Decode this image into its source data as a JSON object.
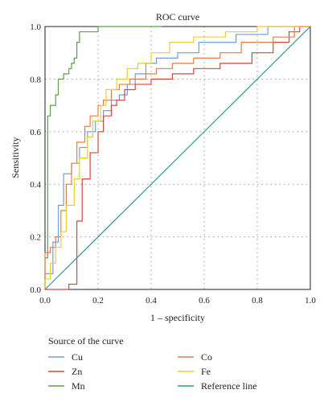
{
  "chart_data": {
    "type": "line",
    "title": "ROC curve",
    "xlabel": "1 – specificity",
    "ylabel": "Sensitivity",
    "xlim": [
      0,
      1
    ],
    "ylim": [
      0,
      1
    ],
    "xticks": [
      "0.0",
      "0.2",
      "0.4",
      "0.6",
      "0.8",
      "1.0"
    ],
    "yticks": [
      "0.0",
      "0.2",
      "0.4",
      "0.6",
      "0.8",
      "1.0"
    ],
    "grid": true,
    "legend": {
      "title": "Source of the curve",
      "placement": "bottom"
    },
    "series": [
      {
        "name": "Cu",
        "color": "#6f9fd8",
        "points": [
          [
            0,
            0
          ],
          [
            0,
            0.06
          ],
          [
            0.03,
            0.06
          ],
          [
            0.03,
            0.18
          ],
          [
            0.05,
            0.18
          ],
          [
            0.05,
            0.32
          ],
          [
            0.07,
            0.32
          ],
          [
            0.07,
            0.44
          ],
          [
            0.1,
            0.44
          ],
          [
            0.1,
            0.48
          ],
          [
            0.13,
            0.48
          ],
          [
            0.13,
            0.54
          ],
          [
            0.16,
            0.54
          ],
          [
            0.16,
            0.6
          ],
          [
            0.19,
            0.6
          ],
          [
            0.19,
            0.64
          ],
          [
            0.22,
            0.64
          ],
          [
            0.22,
            0.68
          ],
          [
            0.25,
            0.68
          ],
          [
            0.25,
            0.72
          ],
          [
            0.28,
            0.72
          ],
          [
            0.28,
            0.74
          ],
          [
            0.31,
            0.74
          ],
          [
            0.31,
            0.78
          ],
          [
            0.34,
            0.78
          ],
          [
            0.34,
            0.82
          ],
          [
            0.38,
            0.82
          ],
          [
            0.38,
            0.86
          ],
          [
            0.42,
            0.86
          ],
          [
            0.42,
            0.88
          ],
          [
            0.5,
            0.88
          ],
          [
            0.5,
            0.9
          ],
          [
            0.58,
            0.9
          ],
          [
            0.58,
            0.94
          ],
          [
            0.72,
            0.94
          ],
          [
            0.72,
            0.97
          ],
          [
            0.84,
            0.97
          ],
          [
            0.84,
            1.0
          ],
          [
            1.0,
            1.0
          ]
        ]
      },
      {
        "name": "Zn",
        "color": "#d9453d",
        "points": [
          [
            0,
            0
          ],
          [
            0.09,
            0
          ],
          [
            0.09,
            0.02
          ],
          [
            0.12,
            0.02
          ],
          [
            0.12,
            0.26
          ],
          [
            0.14,
            0.26
          ],
          [
            0.14,
            0.42
          ],
          [
            0.17,
            0.42
          ],
          [
            0.17,
            0.52
          ],
          [
            0.2,
            0.52
          ],
          [
            0.2,
            0.6
          ],
          [
            0.22,
            0.6
          ],
          [
            0.22,
            0.66
          ],
          [
            0.25,
            0.66
          ],
          [
            0.25,
            0.7
          ],
          [
            0.27,
            0.7
          ],
          [
            0.27,
            0.72
          ],
          [
            0.3,
            0.72
          ],
          [
            0.3,
            0.76
          ],
          [
            0.34,
            0.76
          ],
          [
            0.34,
            0.78
          ],
          [
            0.4,
            0.78
          ],
          [
            0.4,
            0.8
          ],
          [
            0.48,
            0.8
          ],
          [
            0.48,
            0.82
          ],
          [
            0.56,
            0.82
          ],
          [
            0.56,
            0.84
          ],
          [
            0.66,
            0.84
          ],
          [
            0.66,
            0.86
          ],
          [
            0.78,
            0.86
          ],
          [
            0.78,
            0.9
          ],
          [
            0.86,
            0.9
          ],
          [
            0.86,
            0.94
          ],
          [
            0.92,
            0.94
          ],
          [
            0.92,
            0.98
          ],
          [
            0.96,
            0.98
          ],
          [
            0.96,
            1.0
          ],
          [
            1.0,
            1.0
          ]
        ]
      },
      {
        "name": "Mn",
        "color": "#5d9e4a",
        "points": [
          [
            0,
            0
          ],
          [
            0,
            0.12
          ],
          [
            0.01,
            0.12
          ],
          [
            0.01,
            0.66
          ],
          [
            0.02,
            0.66
          ],
          [
            0.02,
            0.7
          ],
          [
            0.04,
            0.7
          ],
          [
            0.04,
            0.74
          ],
          [
            0.05,
            0.74
          ],
          [
            0.05,
            0.8
          ],
          [
            0.07,
            0.8
          ],
          [
            0.07,
            0.82
          ],
          [
            0.09,
            0.82
          ],
          [
            0.09,
            0.84
          ],
          [
            0.1,
            0.84
          ],
          [
            0.1,
            0.86
          ],
          [
            0.11,
            0.86
          ],
          [
            0.11,
            0.88
          ],
          [
            0.12,
            0.88
          ],
          [
            0.12,
            0.94
          ],
          [
            0.13,
            0.94
          ],
          [
            0.13,
            0.98
          ],
          [
            0.2,
            0.98
          ],
          [
            0.2,
            1.0
          ],
          [
            0.44,
            1.0
          ]
        ]
      },
      {
        "name": "Co",
        "color": "#e37d4c",
        "points": [
          [
            0,
            0
          ],
          [
            0,
            0.14
          ],
          [
            0.02,
            0.14
          ],
          [
            0.02,
            0.16
          ],
          [
            0.04,
            0.16
          ],
          [
            0.04,
            0.2
          ],
          [
            0.06,
            0.2
          ],
          [
            0.06,
            0.3
          ],
          [
            0.08,
            0.3
          ],
          [
            0.08,
            0.4
          ],
          [
            0.1,
            0.4
          ],
          [
            0.1,
            0.48
          ],
          [
            0.12,
            0.48
          ],
          [
            0.12,
            0.56
          ],
          [
            0.15,
            0.56
          ],
          [
            0.15,
            0.62
          ],
          [
            0.17,
            0.62
          ],
          [
            0.17,
            0.66
          ],
          [
            0.2,
            0.66
          ],
          [
            0.2,
            0.7
          ],
          [
            0.22,
            0.7
          ],
          [
            0.22,
            0.72
          ],
          [
            0.25,
            0.72
          ],
          [
            0.25,
            0.76
          ],
          [
            0.28,
            0.76
          ],
          [
            0.28,
            0.78
          ],
          [
            0.32,
            0.78
          ],
          [
            0.32,
            0.8
          ],
          [
            0.38,
            0.8
          ],
          [
            0.38,
            0.82
          ],
          [
            0.42,
            0.82
          ],
          [
            0.42,
            0.84
          ],
          [
            0.48,
            0.84
          ],
          [
            0.48,
            0.86
          ],
          [
            0.56,
            0.86
          ],
          [
            0.56,
            0.88
          ],
          [
            0.66,
            0.88
          ],
          [
            0.66,
            0.9
          ],
          [
            0.74,
            0.9
          ],
          [
            0.74,
            0.94
          ],
          [
            0.86,
            0.94
          ],
          [
            0.86,
            0.96
          ],
          [
            0.94,
            0.96
          ],
          [
            0.94,
            1.0
          ],
          [
            1.0,
            1.0
          ]
        ]
      },
      {
        "name": "Fe",
        "color": "#eacf2b",
        "points": [
          [
            0,
            0
          ],
          [
            0,
            0.04
          ],
          [
            0.02,
            0.04
          ],
          [
            0.02,
            0.1
          ],
          [
            0.04,
            0.1
          ],
          [
            0.04,
            0.16
          ],
          [
            0.06,
            0.16
          ],
          [
            0.06,
            0.22
          ],
          [
            0.08,
            0.22
          ],
          [
            0.08,
            0.32
          ],
          [
            0.11,
            0.32
          ],
          [
            0.11,
            0.42
          ],
          [
            0.13,
            0.42
          ],
          [
            0.13,
            0.5
          ],
          [
            0.16,
            0.5
          ],
          [
            0.16,
            0.58
          ],
          [
            0.18,
            0.58
          ],
          [
            0.18,
            0.64
          ],
          [
            0.21,
            0.64
          ],
          [
            0.21,
            0.7
          ],
          [
            0.23,
            0.7
          ],
          [
            0.23,
            0.76
          ],
          [
            0.27,
            0.76
          ],
          [
            0.27,
            0.8
          ],
          [
            0.31,
            0.8
          ],
          [
            0.31,
            0.84
          ],
          [
            0.35,
            0.84
          ],
          [
            0.35,
            0.86
          ],
          [
            0.4,
            0.86
          ],
          [
            0.4,
            0.9
          ],
          [
            0.47,
            0.9
          ],
          [
            0.47,
            0.94
          ],
          [
            0.56,
            0.94
          ],
          [
            0.56,
            0.96
          ],
          [
            0.68,
            0.96
          ],
          [
            0.68,
            0.98
          ],
          [
            0.8,
            0.98
          ],
          [
            0.8,
            1.0
          ],
          [
            1.0,
            1.0
          ]
        ]
      },
      {
        "name": "Reference line",
        "color": "#2a9a86",
        "points": [
          [
            0,
            0
          ],
          [
            1,
            1
          ]
        ]
      }
    ]
  }
}
